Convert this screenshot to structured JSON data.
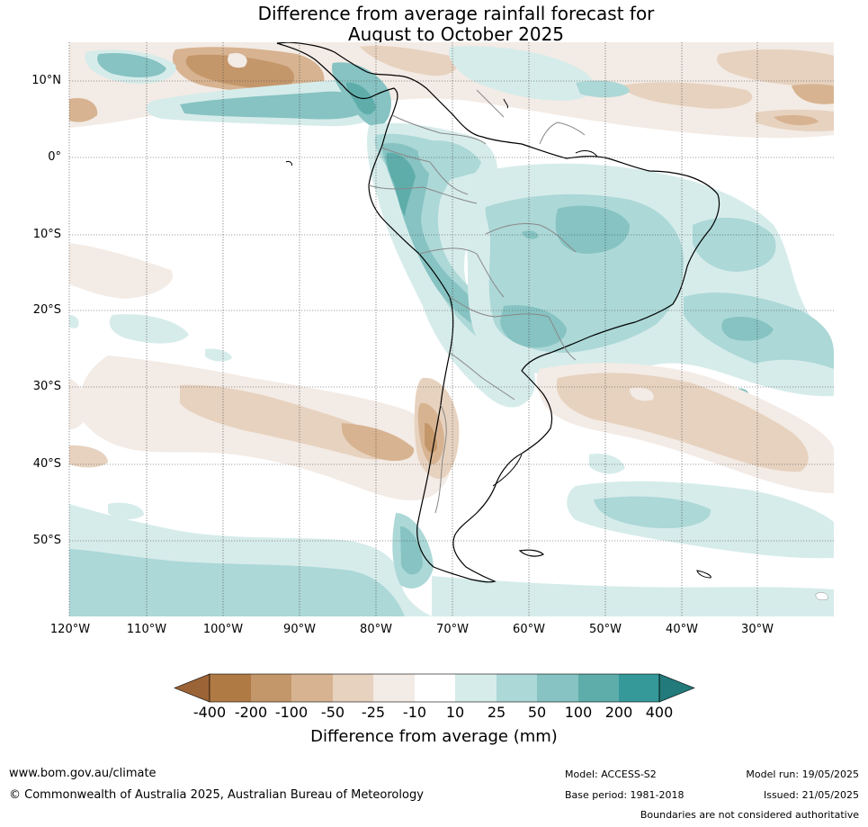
{
  "title_line1": "Difference from average rainfall forecast for",
  "title_line2": "August to October 2025",
  "lat_labels": [
    "10°N",
    "0°",
    "10°S",
    "20°S",
    "30°S",
    "40°S",
    "50°S"
  ],
  "lon_labels": [
    "120°W",
    "110°W",
    "100°W",
    "90°W",
    "80°W",
    "70°W",
    "60°W",
    "50°W",
    "40°W",
    "30°W"
  ],
  "colorbar": {
    "ticks": [
      "-400",
      "-200",
      "-100",
      "-50",
      "-25",
      "-10",
      "10",
      "25",
      "50",
      "100",
      "200",
      "400"
    ],
    "label": "Difference from average (mm)",
    "colors": [
      "#9b6437",
      "#b07a45",
      "#c4976b",
      "#d7b391",
      "#e7d2bf",
      "#f3ebe5",
      "#ffffff",
      "#d6eceb",
      "#acd8d7",
      "#86c3c2",
      "#5eadab",
      "#35999a",
      "#237a7a"
    ]
  },
  "footer": {
    "website": "www.bom.gov.au/climate",
    "copyright": "© Commonwealth of Australia 2025, Australian Bureau of Meteorology",
    "model": "Model: ACCESS-S2",
    "base_period": "Base period: 1981-2018",
    "model_run": "Model run: 19/05/2025",
    "issued": "Issued: 21/05/2025",
    "boundaries": "Boundaries are not considered authoritative"
  }
}
